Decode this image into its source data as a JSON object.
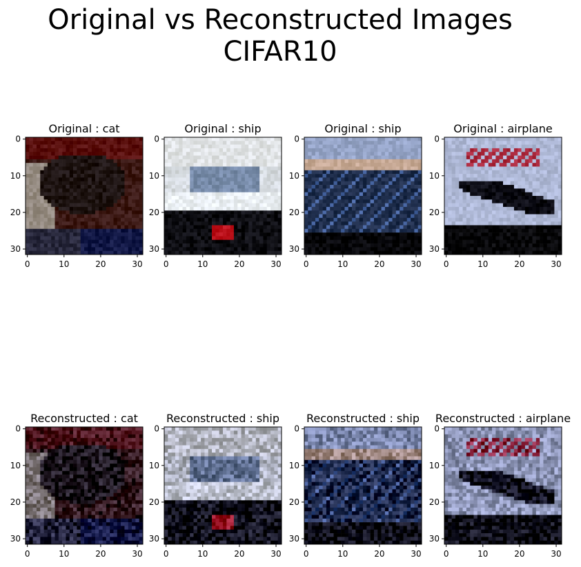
{
  "figure": {
    "title_lines": [
      "Original vs Reconstructed Images",
      "CIFAR10"
    ]
  },
  "chart_data": {
    "type": "image-grid",
    "rows": 2,
    "cols": 4,
    "image_shape": [
      32,
      32
    ],
    "x_ticks": [
      0,
      10,
      20,
      30
    ],
    "y_ticks": [
      0,
      10,
      20,
      30
    ],
    "panels": [
      {
        "title": "Original :  cat",
        "kind": "original",
        "label": "cat"
      },
      {
        "title": "Original :  ship",
        "kind": "original",
        "label": "ship"
      },
      {
        "title": "Original :  ship",
        "kind": "original",
        "label": "ship"
      },
      {
        "title": "Original :  airplane",
        "kind": "original",
        "label": "airplane"
      },
      {
        "title": "Reconstructed :  cat",
        "kind": "reconstructed",
        "label": "cat"
      },
      {
        "title": "Reconstructed :  ship",
        "kind": "reconstructed",
        "label": "ship"
      },
      {
        "title": "Reconstructed :  ship",
        "kind": "reconstructed",
        "label": "ship"
      },
      {
        "title": "Reconstructed :  airplane",
        "kind": "reconstructed",
        "label": "airplane"
      }
    ]
  }
}
